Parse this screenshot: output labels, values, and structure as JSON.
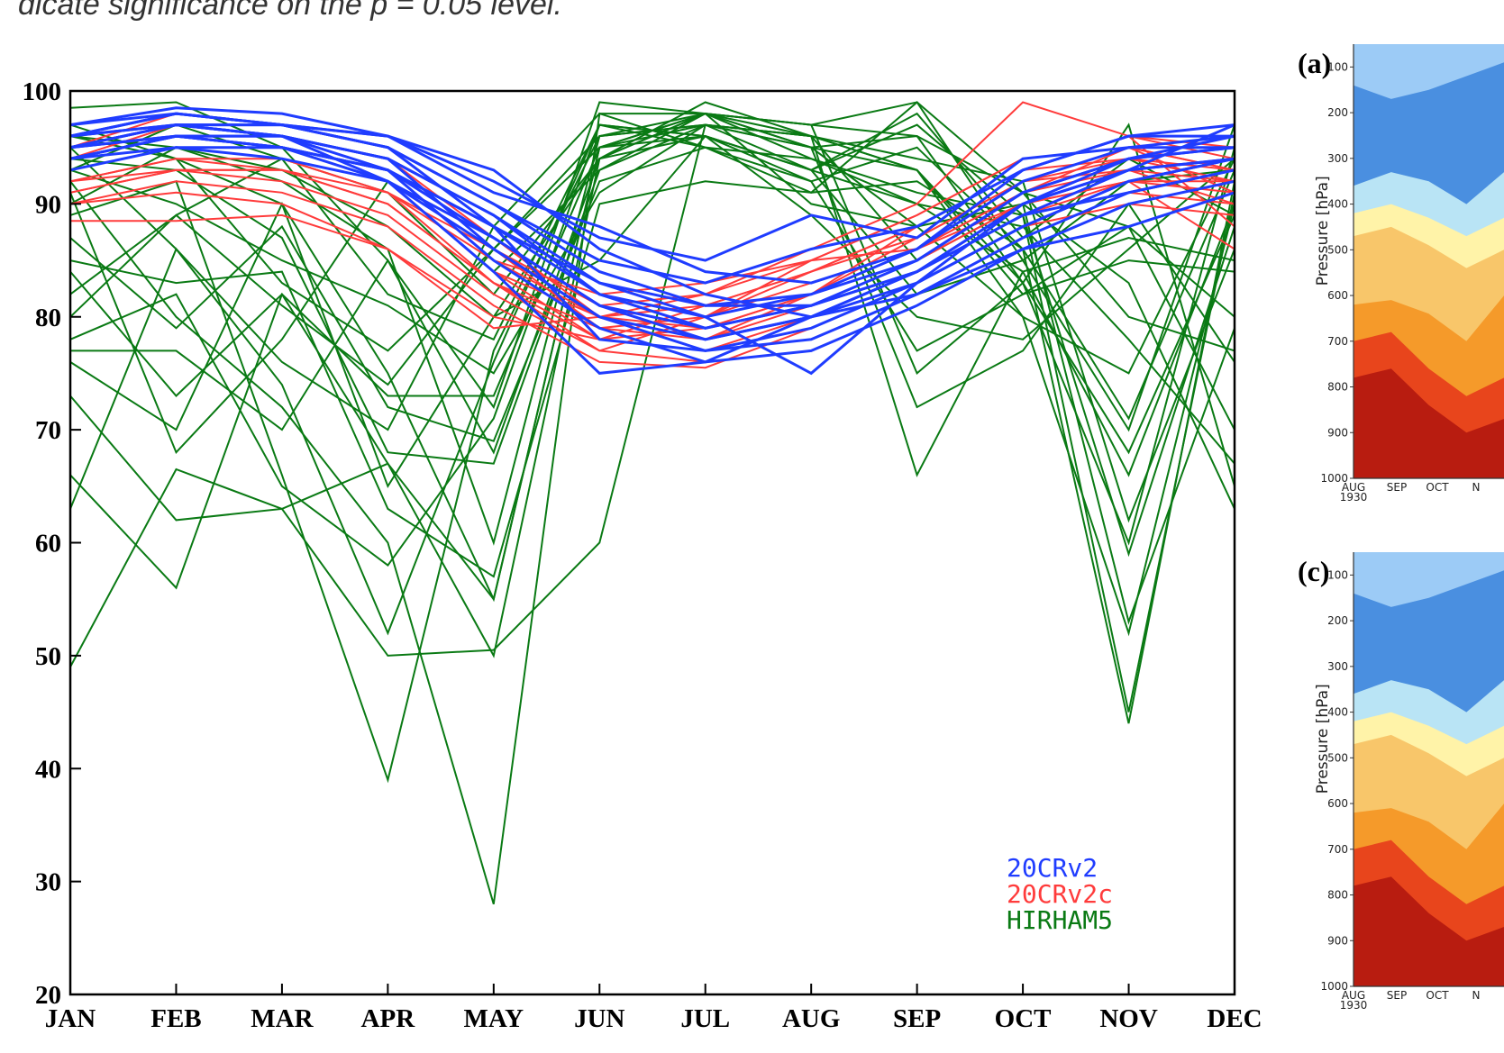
{
  "caption_fragment": "dicate significance on the p = 0.05 level.",
  "colors": {
    "20CRv2": "#1f3cff",
    "20CRv2c": "#ff3b3b",
    "HIRHAM5": "#0a7a14"
  },
  "chart_data": [
    {
      "type": "line",
      "categories": [
        "JAN",
        "FEB",
        "MAR",
        "APR",
        "MAY",
        "JUN",
        "JUL",
        "AUG",
        "SEP",
        "OCT",
        "NOV",
        "DEC"
      ],
      "ylim": [
        20,
        100
      ],
      "yticks": [
        "20",
        "30",
        "40",
        "50",
        "60",
        "70",
        "80",
        "90",
        "100"
      ],
      "legend": {
        "position": "bottom-right",
        "entries": [
          "20CRv2",
          "20CRv2c",
          "HIRHAM5"
        ]
      },
      "series": [
        {
          "group": "20CRv2",
          "values": [
            97,
            98.5,
            98,
            96,
            93,
            86,
            82,
            80,
            84,
            90,
            93,
            97
          ]
        },
        {
          "group": "20CRv2",
          "values": [
            96,
            97,
            97,
            95,
            90,
            84,
            81,
            81,
            85,
            91,
            94,
            96
          ]
        },
        {
          "group": "20CRv2",
          "values": [
            95,
            97,
            96,
            94,
            89,
            83,
            80,
            82,
            86,
            92,
            95,
            95
          ]
        },
        {
          "group": "20CRv2",
          "values": [
            95,
            96,
            96,
            93,
            88,
            82,
            79,
            81,
            84,
            89,
            93,
            94
          ]
        },
        {
          "group": "20CRv2",
          "values": [
            94,
            96,
            95,
            92,
            87,
            81,
            78,
            80,
            83,
            88,
            92,
            94
          ]
        },
        {
          "group": "20CRv2",
          "values": [
            96,
            98,
            97,
            96,
            91,
            88,
            84,
            83,
            86,
            93,
            96,
            96
          ]
        },
        {
          "group": "20CRv2",
          "values": [
            95,
            97,
            96,
            94,
            86,
            80,
            77,
            78,
            82,
            87,
            91,
            93
          ]
        },
        {
          "group": "20CRv2",
          "values": [
            94,
            96,
            95,
            93,
            85,
            79,
            76,
            77,
            81,
            86,
            90,
            92
          ]
        },
        {
          "group": "20CRv2",
          "values": [
            96,
            98,
            97,
            95,
            88,
            78,
            77,
            79,
            83,
            90,
            94,
            95
          ]
        },
        {
          "group": "20CRv2",
          "values": [
            93,
            95,
            94,
            92,
            84,
            75,
            76,
            80,
            84,
            89,
            91,
            93
          ]
        },
        {
          "group": "20CRv2",
          "values": [
            95,
            97,
            96,
            94,
            89,
            82,
            80,
            75,
            83,
            88,
            92,
            94
          ]
        },
        {
          "group": "20CRv2",
          "values": [
            96,
            97,
            97,
            95,
            90,
            85,
            83,
            86,
            88,
            93,
            96,
            97
          ]
        },
        {
          "group": "20CRv2",
          "values": [
            94,
            96,
            95,
            93,
            87,
            81,
            79,
            81,
            84,
            90,
            93,
            94
          ]
        },
        {
          "group": "20CRv2",
          "values": [
            95,
            96,
            96,
            92,
            86,
            80,
            78,
            80,
            82,
            86,
            88,
            91
          ]
        },
        {
          "group": "20CRv2",
          "values": [
            97,
            98,
            97,
            96,
            92,
            87,
            85,
            89,
            87,
            94,
            95,
            96
          ]
        },
        {
          "group": "20CRv2",
          "values": [
            94,
            95,
            95,
            93,
            88,
            83,
            81,
            82,
            85,
            91,
            94,
            95
          ]
        },
        {
          "group": "20CRv2c",
          "values": [
            94,
            96,
            95,
            93,
            87,
            81,
            79,
            82,
            86,
            91,
            95,
            93
          ]
        },
        {
          "group": "20CRv2c",
          "values": [
            93,
            95,
            94,
            91,
            85,
            80,
            78,
            81,
            85,
            90,
            93,
            92
          ]
        },
        {
          "group": "20CRv2c",
          "values": [
            92,
            94,
            93,
            90,
            83,
            78,
            77,
            80,
            84,
            89,
            92,
            91
          ]
        },
        {
          "group": "20CRv2c",
          "values": [
            91,
            93,
            92,
            89,
            82,
            77,
            76,
            80,
            84,
            89,
            91,
            90
          ]
        },
        {
          "group": "20CRv2c",
          "values": [
            90,
            92,
            91,
            88,
            81,
            76,
            75.5,
            79,
            83,
            88,
            90,
            89
          ]
        },
        {
          "group": "20CRv2c",
          "values": [
            95,
            97,
            96,
            94,
            86,
            79,
            78,
            82,
            88,
            93,
            96,
            94
          ]
        },
        {
          "group": "20CRv2c",
          "values": [
            93,
            95,
            94,
            92,
            84,
            78,
            79,
            82,
            87,
            92,
            94,
            93
          ]
        },
        {
          "group": "20CRv2c",
          "values": [
            92,
            94,
            94,
            91,
            83,
            79,
            80,
            84,
            88,
            93,
            94,
            92
          ]
        },
        {
          "group": "20CRv2c",
          "values": [
            94,
            96,
            95,
            93,
            85,
            82,
            83,
            85,
            89,
            94,
            95,
            93
          ]
        },
        {
          "group": "20CRv2c",
          "values": [
            88.5,
            88.5,
            89,
            86,
            80,
            78,
            81,
            84,
            87,
            92,
            93,
            90
          ]
        },
        {
          "group": "20CRv2c",
          "values": [
            90,
            91,
            90,
            86,
            79,
            80,
            82,
            86,
            90,
            99,
            96,
            88
          ]
        },
        {
          "group": "20CRv2c",
          "values": [
            93,
            95,
            94,
            92,
            84,
            80,
            79,
            81,
            85,
            90,
            92,
            86
          ]
        },
        {
          "group": "20CRv2c",
          "values": [
            92,
            93,
            93,
            90,
            83,
            77,
            80,
            85,
            89,
            94,
            95,
            91
          ]
        },
        {
          "group": "20CRv2c",
          "values": [
            94,
            97,
            96,
            94,
            87,
            80,
            81,
            84,
            88,
            93,
            96,
            95
          ]
        },
        {
          "group": "20CRv2c",
          "values": [
            91,
            93,
            93,
            91,
            86,
            81,
            82,
            85,
            86,
            90,
            92,
            92
          ]
        },
        {
          "group": "20CRv2c",
          "values": [
            95,
            98,
            97,
            95,
            88,
            82,
            80,
            83,
            86,
            91,
            93,
            94
          ]
        },
        {
          "group": "HIRHAM5",
          "values": [
            98.5,
            99,
            95,
            85,
            72,
            99,
            98,
            97,
            99,
            85,
            70,
            97
          ]
        },
        {
          "group": "HIRHAM5",
          "values": [
            96,
            94,
            90,
            75,
            55,
            95,
            98,
            95,
            96,
            83,
            60,
            95
          ]
        },
        {
          "group": "HIRHAM5",
          "values": [
            92,
            80,
            72,
            60,
            28,
            98,
            95,
            92,
            95,
            86,
            44,
            92
          ]
        },
        {
          "group": "HIRHAM5",
          "values": [
            49,
            66.5,
            63,
            67,
            50,
            94,
            98,
            90,
            88,
            80,
            52,
            90
          ]
        },
        {
          "group": "HIRHAM5",
          "values": [
            63,
            86,
            74,
            52,
            76,
            97,
            96,
            93,
            90,
            84,
            66,
            90
          ]
        },
        {
          "group": "HIRHAM5",
          "values": [
            66,
            56,
            82,
            73,
            73,
            95,
            97,
            96,
            93,
            80,
            75,
            94
          ]
        },
        {
          "group": "HIRHAM5",
          "values": [
            73,
            62,
            63,
            50,
            50.5,
            60,
            97,
            95,
            93,
            83,
            97,
            65
          ]
        },
        {
          "group": "HIRHAM5",
          "values": [
            77,
            77,
            70,
            85,
            68,
            94,
            96,
            92,
            77,
            82,
            88,
            70
          ]
        },
        {
          "group": "HIRHAM5",
          "values": [
            85,
            83,
            84,
            63,
            57,
            90,
            92,
            91,
            99,
            91,
            80,
            77
          ]
        },
        {
          "group": "HIRHAM5",
          "values": [
            89,
            92,
            66,
            39,
            77,
            96,
            98,
            94,
            91,
            89,
            59,
            88
          ]
        },
        {
          "group": "HIRHAM5",
          "values": [
            91,
            68,
            78,
            92,
            84,
            93,
            97,
            96,
            85,
            90,
            83,
            63
          ]
        },
        {
          "group": "HIRHAM5",
          "values": [
            96,
            95,
            93,
            88,
            80,
            85,
            96,
            89,
            80,
            78,
            86,
            94
          ]
        },
        {
          "group": "HIRHAM5",
          "values": [
            84,
            73,
            82,
            67,
            55,
            95,
            98,
            96,
            66,
            84,
            87,
            85
          ]
        },
        {
          "group": "HIRHAM5",
          "values": [
            80,
            89,
            81,
            74,
            86,
            96,
            97,
            95,
            72,
            77,
            90,
            76
          ]
        },
        {
          "group": "HIRHAM5",
          "values": [
            93,
            97,
            94,
            91,
            82,
            94,
            98,
            97,
            75,
            83,
            68,
            89
          ]
        },
        {
          "group": "HIRHAM5",
          "values": [
            78,
            82,
            65,
            58,
            71,
            97,
            96,
            93,
            82,
            85,
            92,
            93
          ]
        },
        {
          "group": "HIRHAM5",
          "values": [
            95,
            86,
            76,
            70,
            88,
            98,
            98,
            95,
            88,
            90,
            53,
            79
          ]
        },
        {
          "group": "HIRHAM5",
          "values": [
            87,
            79,
            88,
            72,
            69,
            92,
            95,
            94,
            90,
            88,
            78,
            67
          ]
        },
        {
          "group": "HIRHAM5",
          "values": [
            93,
            90,
            85,
            81,
            75,
            91,
            97,
            96,
            94,
            92,
            62,
            86
          ]
        },
        {
          "group": "HIRHAM5",
          "values": [
            90,
            95,
            92,
            86,
            60,
            96,
            97,
            93,
            97,
            89,
            45,
            91
          ]
        },
        {
          "group": "HIRHAM5",
          "values": [
            82,
            89,
            94,
            82,
            78,
            97,
            95,
            91,
            92,
            86,
            71,
            93
          ]
        },
        {
          "group": "HIRHAM5",
          "values": [
            94,
            93,
            87,
            68,
            67,
            93,
            98,
            97,
            96,
            91,
            88,
            80
          ]
        },
        {
          "group": "HIRHAM5",
          "values": [
            97,
            94,
            83,
            77,
            86,
            95,
            96,
            93,
            98,
            87,
            94,
            89
          ]
        },
        {
          "group": "HIRHAM5",
          "values": [
            76,
            70,
            90,
            65,
            80,
            94,
            99,
            96,
            93,
            82,
            85,
            84
          ]
        }
      ]
    },
    {
      "type": "heatmap",
      "panel": "(a)",
      "ylabel": "Pressure [hPa]",
      "yticks": [
        "100",
        "200",
        "300",
        "400",
        "500",
        "600",
        "700",
        "800",
        "900",
        "1000"
      ],
      "xticks": [
        "AUG\n1930",
        "SEP",
        "OCT",
        "N"
      ]
    },
    {
      "type": "heatmap",
      "panel": "(c)",
      "ylabel": "Pressure [hPa]",
      "yticks": [
        "100",
        "200",
        "300",
        "400",
        "500",
        "600",
        "700",
        "800",
        "900",
        "1000"
      ],
      "xticks": [
        "AUG\n1930",
        "SEP",
        "OCT",
        "N"
      ]
    }
  ]
}
